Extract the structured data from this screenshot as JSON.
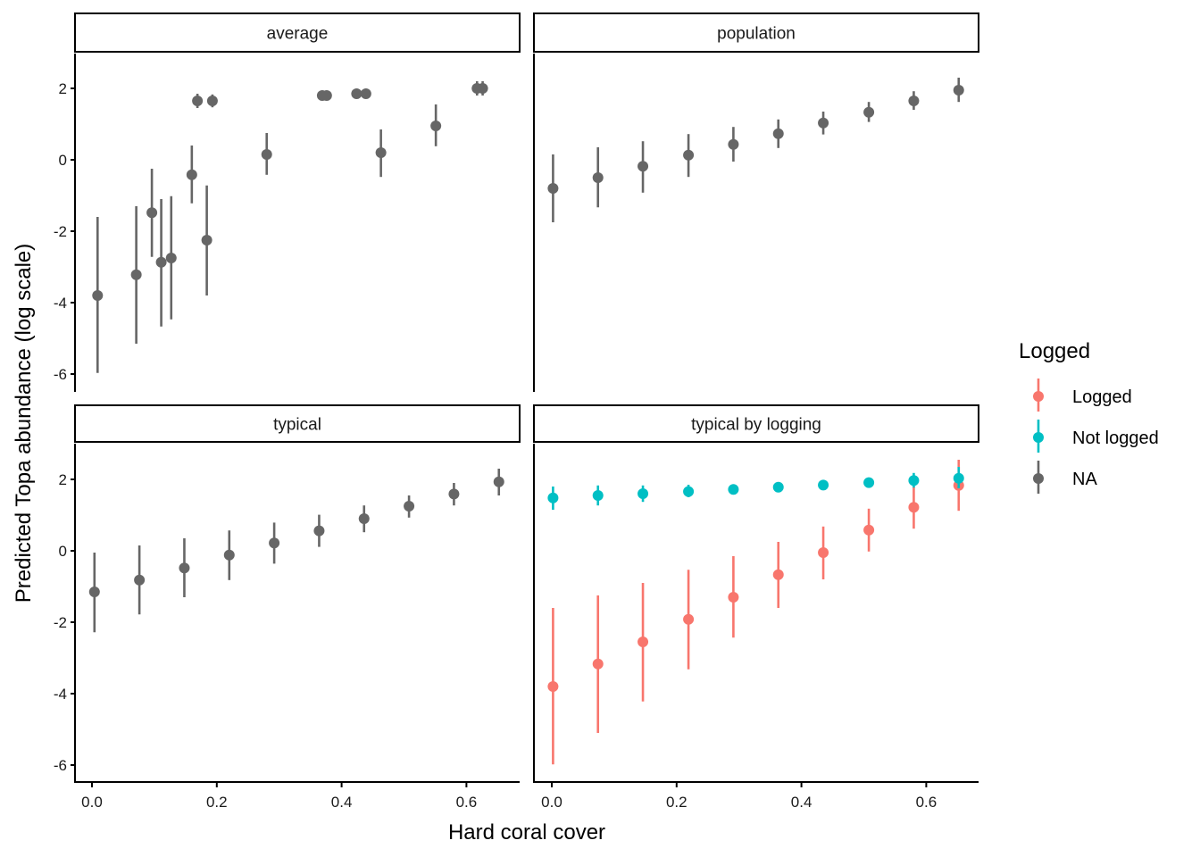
{
  "chart_data": {
    "type": "scatter",
    "subtype": "pointrange-facets",
    "xlabel": "Hard coral cover",
    "ylabel": "Predicted Topa abundance (log scale)",
    "xlim": [
      -0.03,
      0.68
    ],
    "ylim": [
      -6.4,
      3.0
    ],
    "x_ticks": [
      0.0,
      0.2,
      0.4,
      0.6
    ],
    "x_tick_labels": [
      "0.0",
      "0.2",
      "0.4",
      "0.6"
    ],
    "y_ticks": [
      2,
      0,
      -2,
      -4,
      -6
    ],
    "y_tick_labels": [
      "2",
      "0",
      "-2",
      "-4",
      "-6"
    ],
    "grid": false,
    "legend": {
      "title": "Logged",
      "position": "right",
      "entries": [
        {
          "label": "Logged",
          "color": "#F8766D"
        },
        {
          "label": "Not logged",
          "color": "#00BFC4"
        },
        {
          "label": "NA",
          "color": "#666666"
        }
      ]
    },
    "panels": [
      {
        "title": "average",
        "series": [
          {
            "name": "NA",
            "color": "#666666",
            "points": [
              {
                "x": 0.009,
                "y": -3.8,
                "lo": -5.97,
                "hi": -1.6
              },
              {
                "x": 0.071,
                "y": -3.22,
                "lo": -5.15,
                "hi": -1.3
              },
              {
                "x": 0.096,
                "y": -1.48,
                "lo": -2.72,
                "hi": -0.25
              },
              {
                "x": 0.111,
                "y": -2.87,
                "lo": -4.67,
                "hi": -1.1
              },
              {
                "x": 0.127,
                "y": -2.75,
                "lo": -4.47,
                "hi": -1.02
              },
              {
                "x": 0.16,
                "y": -0.42,
                "lo": -1.22,
                "hi": 0.4
              },
              {
                "x": 0.169,
                "y": 1.65,
                "lo": 1.45,
                "hi": 1.85
              },
              {
                "x": 0.184,
                "y": -2.25,
                "lo": -3.8,
                "hi": -0.72
              },
              {
                "x": 0.193,
                "y": 1.65,
                "lo": 1.47,
                "hi": 1.83
              },
              {
                "x": 0.28,
                "y": 0.15,
                "lo": -0.42,
                "hi": 0.75
              },
              {
                "x": 0.369,
                "y": 1.8,
                "lo": 1.74,
                "hi": 1.86
              },
              {
                "x": 0.376,
                "y": 1.8,
                "lo": 1.74,
                "hi": 1.86
              },
              {
                "x": 0.424,
                "y": 1.85,
                "lo": 1.79,
                "hi": 1.91
              },
              {
                "x": 0.439,
                "y": 1.85,
                "lo": 1.79,
                "hi": 1.91
              },
              {
                "x": 0.463,
                "y": 0.2,
                "lo": -0.48,
                "hi": 0.85
              },
              {
                "x": 0.551,
                "y": 0.95,
                "lo": 0.38,
                "hi": 1.55
              },
              {
                "x": 0.617,
                "y": 2.0,
                "lo": 1.8,
                "hi": 2.2
              },
              {
                "x": 0.626,
                "y": 2.0,
                "lo": 1.8,
                "hi": 2.2
              }
            ]
          }
        ]
      },
      {
        "title": "population",
        "series": [
          {
            "name": "NA",
            "color": "#666666",
            "points": [
              {
                "x": 0.002,
                "y": -0.8,
                "lo": -1.75,
                "hi": 0.15
              },
              {
                "x": 0.074,
                "y": -0.5,
                "lo": -1.33,
                "hi": 0.35
              },
              {
                "x": 0.146,
                "y": -0.18,
                "lo": -0.92,
                "hi": 0.52
              },
              {
                "x": 0.219,
                "y": 0.13,
                "lo": -0.48,
                "hi": 0.72
              },
              {
                "x": 0.291,
                "y": 0.43,
                "lo": -0.05,
                "hi": 0.92
              },
              {
                "x": 0.363,
                "y": 0.73,
                "lo": 0.33,
                "hi": 1.13
              },
              {
                "x": 0.435,
                "y": 1.03,
                "lo": 0.71,
                "hi": 1.35
              },
              {
                "x": 0.508,
                "y": 1.33,
                "lo": 1.06,
                "hi": 1.62
              },
              {
                "x": 0.58,
                "y": 1.65,
                "lo": 1.4,
                "hi": 1.92
              },
              {
                "x": 0.652,
                "y": 1.95,
                "lo": 1.62,
                "hi": 2.3
              }
            ]
          }
        ]
      },
      {
        "title": "typical",
        "series": [
          {
            "name": "NA",
            "color": "#666666",
            "points": [
              {
                "x": 0.004,
                "y": -1.15,
                "lo": -2.28,
                "hi": -0.05
              },
              {
                "x": 0.076,
                "y": -0.82,
                "lo": -1.78,
                "hi": 0.15
              },
              {
                "x": 0.148,
                "y": -0.48,
                "lo": -1.3,
                "hi": 0.35
              },
              {
                "x": 0.22,
                "y": -0.12,
                "lo": -0.82,
                "hi": 0.57
              },
              {
                "x": 0.292,
                "y": 0.22,
                "lo": -0.36,
                "hi": 0.79
              },
              {
                "x": 0.364,
                "y": 0.56,
                "lo": 0.11,
                "hi": 1.01
              },
              {
                "x": 0.436,
                "y": 0.9,
                "lo": 0.52,
                "hi": 1.27
              },
              {
                "x": 0.508,
                "y": 1.25,
                "lo": 0.93,
                "hi": 1.55
              },
              {
                "x": 0.58,
                "y": 1.59,
                "lo": 1.27,
                "hi": 1.9
              },
              {
                "x": 0.652,
                "y": 1.93,
                "lo": 1.55,
                "hi": 2.3
              }
            ]
          }
        ]
      },
      {
        "title": "typical by logging",
        "series": [
          {
            "name": "Logged",
            "color": "#F8766D",
            "points": [
              {
                "x": 0.002,
                "y": -3.8,
                "lo": -5.98,
                "hi": -1.6
              },
              {
                "x": 0.074,
                "y": -3.17,
                "lo": -5.1,
                "hi": -1.25
              },
              {
                "x": 0.146,
                "y": -2.55,
                "lo": -4.22,
                "hi": -0.9
              },
              {
                "x": 0.219,
                "y": -1.92,
                "lo": -3.32,
                "hi": -0.53
              },
              {
                "x": 0.291,
                "y": -1.3,
                "lo": -2.43,
                "hi": -0.15
              },
              {
                "x": 0.363,
                "y": -0.67,
                "lo": -1.6,
                "hi": 0.25
              },
              {
                "x": 0.435,
                "y": -0.05,
                "lo": -0.8,
                "hi": 0.68
              },
              {
                "x": 0.508,
                "y": 0.58,
                "lo": -0.02,
                "hi": 1.18
              },
              {
                "x": 0.58,
                "y": 1.22,
                "lo": 0.62,
                "hi": 1.8
              },
              {
                "x": 0.652,
                "y": 1.83,
                "lo": 1.12,
                "hi": 2.55
              }
            ]
          },
          {
            "name": "Not logged",
            "color": "#00BFC4",
            "points": [
              {
                "x": 0.002,
                "y": 1.48,
                "lo": 1.15,
                "hi": 1.8
              },
              {
                "x": 0.074,
                "y": 1.55,
                "lo": 1.27,
                "hi": 1.83
              },
              {
                "x": 0.146,
                "y": 1.6,
                "lo": 1.37,
                "hi": 1.83
              },
              {
                "x": 0.219,
                "y": 1.66,
                "lo": 1.5,
                "hi": 1.85
              },
              {
                "x": 0.291,
                "y": 1.72,
                "lo": 1.63,
                "hi": 1.82
              },
              {
                "x": 0.363,
                "y": 1.78,
                "lo": 1.7,
                "hi": 1.86
              },
              {
                "x": 0.435,
                "y": 1.84,
                "lo": 1.76,
                "hi": 1.92
              },
              {
                "x": 0.508,
                "y": 1.91,
                "lo": 1.78,
                "hi": 2.03
              },
              {
                "x": 0.58,
                "y": 1.97,
                "lo": 1.77,
                "hi": 2.18
              },
              {
                "x": 0.652,
                "y": 2.03,
                "lo": 1.75,
                "hi": 2.35
              }
            ]
          }
        ]
      }
    ]
  }
}
